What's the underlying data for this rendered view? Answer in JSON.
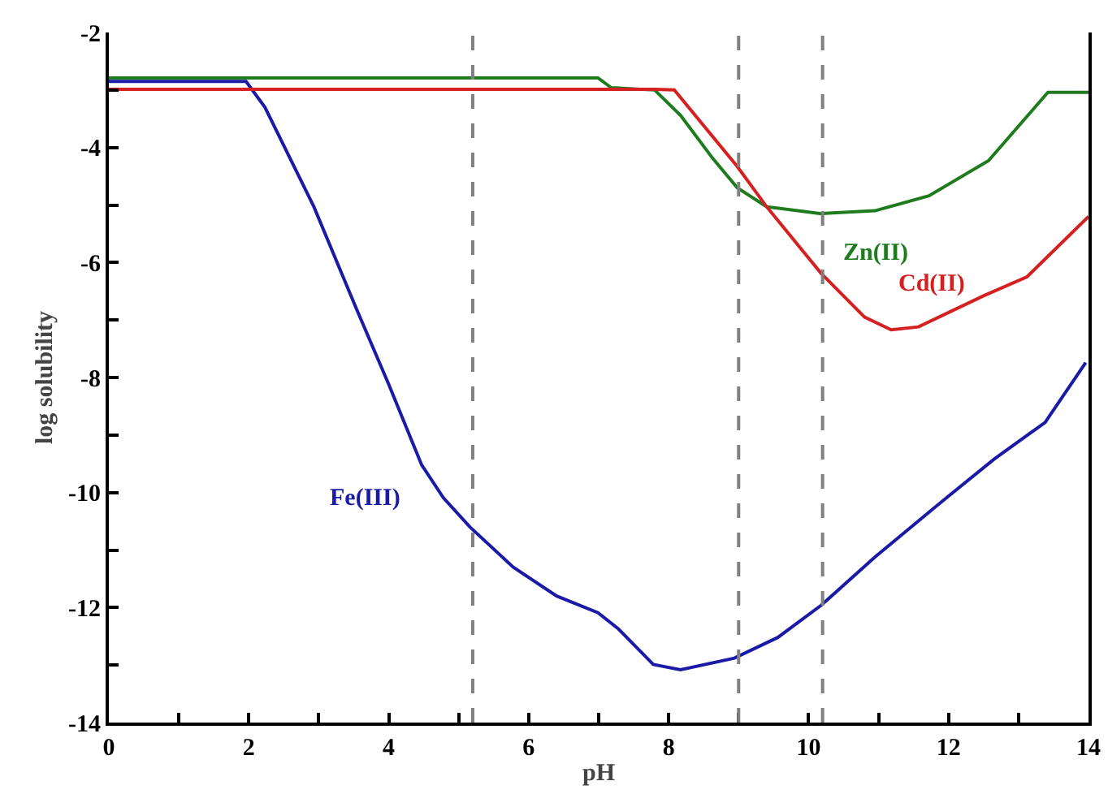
{
  "chart_data": {
    "type": "line",
    "xlabel": "pH",
    "ylabel": "log solubility",
    "xlim": [
      0,
      14
    ],
    "ylim": [
      -14,
      -2
    ],
    "xticks": [
      0,
      {
        "value": 1,
        "label": null
      },
      2,
      {
        "value": 3,
        "label": null
      },
      4,
      {
        "value": 5,
        "label": null
      },
      6,
      {
        "value": 7,
        "label": null
      },
      8,
      {
        "value": 9,
        "label": null
      },
      10,
      {
        "value": 11,
        "label": null
      },
      12,
      {
        "value": 13,
        "label": null
      },
      14
    ],
    "yticks": [
      -14,
      {
        "value": -13,
        "label": null
      },
      -12,
      {
        "value": -11,
        "label": null
      },
      -10,
      {
        "value": -9,
        "label": null
      },
      -8,
      {
        "value": -7,
        "label": null
      },
      -6,
      {
        "value": -5,
        "label": null
      },
      -4,
      {
        "value": -3,
        "label": null
      },
      -2
    ],
    "grid": false,
    "legend": false,
    "marker": "none",
    "line_style": "solid",
    "series": [
      {
        "name": "Fe(III)",
        "color": "#1a1aa6",
        "x": [
          0,
          1.96,
          2.23,
          2.93,
          3.54,
          4.0,
          4.47,
          4.78,
          5.16,
          5.78,
          6.4,
          6.99,
          7.28,
          7.78,
          8.17,
          8.94,
          9.56,
          10.18,
          10.95,
          11.88,
          12.65,
          13.38,
          13.96
        ],
        "values": [
          -2.85,
          -2.85,
          -3.3,
          -5.03,
          -6.81,
          -8.12,
          -9.52,
          -10.09,
          -10.6,
          -11.3,
          -11.8,
          -12.09,
          -12.37,
          -12.99,
          -13.08,
          -12.88,
          -12.52,
          -11.96,
          -11.12,
          -10.18,
          -9.42,
          -8.78,
          -7.74
        ]
      },
      {
        "name": "Zn(II)",
        "color": "#1e7b1e",
        "x": [
          0,
          6.99,
          7.18,
          7.8,
          8.17,
          8.63,
          8.98,
          9.4,
          10.18,
          10.95,
          11.72,
          12.57,
          13.42,
          14
        ],
        "values": [
          -2.79,
          -2.79,
          -2.96,
          -3.0,
          -3.44,
          -4.19,
          -4.7,
          -5.03,
          -5.15,
          -5.1,
          -4.84,
          -4.23,
          -3.04,
          -3.04
        ]
      },
      {
        "name": "Cd(II)",
        "color": "#d42020",
        "x": [
          0,
          7.8,
          8.08,
          8.98,
          9.4,
          10.18,
          10.8,
          11.18,
          11.57,
          12.5,
          13.12,
          14
        ],
        "values": [
          -2.99,
          -2.99,
          -3.0,
          -4.33,
          -5.03,
          -6.19,
          -6.95,
          -7.17,
          -7.12,
          -6.58,
          -6.25,
          -5.2
        ]
      }
    ],
    "ref_lines": [
      {
        "axis": "x",
        "value": 5.2,
        "color": "#808080",
        "line_style": "dashed"
      },
      {
        "axis": "x",
        "value": 9.0,
        "color": "#808080",
        "line_style": "dashed"
      },
      {
        "axis": "x",
        "value": 10.2,
        "color": "#808080",
        "line_style": "dashed"
      }
    ]
  }
}
